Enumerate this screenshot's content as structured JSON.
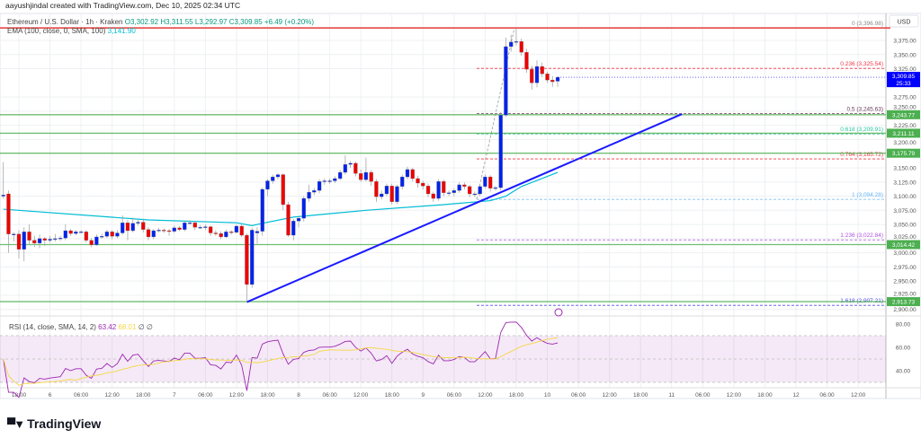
{
  "credit": "aayushjindal created with TradingView.com, Dec 10, 2025 02:34 UTC",
  "symbol": {
    "title": "Ethereum / U.S. Dollar · 1h · Kraken",
    "o": "O3,302.92",
    "h": "H3,311.55",
    "l": "L3,292.97",
    "c": "C3,309.85",
    "change": "+6.49 (+0.20%)"
  },
  "ema": {
    "label": "EMA (100, close, 0, SMA, 100)",
    "value": "3,141.90",
    "color": "#00bcd4"
  },
  "rsi": {
    "label": "RSI (14, close, SMA, 14, 2)",
    "value": "63.42",
    "sma": "68.01",
    "extra": "∅ ∅",
    "color": "#9c27b0",
    "sma_color": "#f5d742"
  },
  "currency": "USD",
  "last_price": {
    "value": "3,309.85",
    "countdown": "25:33",
    "color": "#0000ff"
  },
  "colors": {
    "up": "#0022ee",
    "down": "#ee0000",
    "support": "#4caf50",
    "trendline": "#1a1aff"
  },
  "logo": "TradingView",
  "chart_data": {
    "type": "candlestick",
    "interval": "1h",
    "start": "2025-12-05 15:00",
    "ohlc": [
      [
        3100,
        3160,
        3096,
        3102
      ],
      [
        3104,
        3110,
        3000,
        3033
      ],
      [
        3033,
        3036,
        3020,
        3033
      ],
      [
        3033,
        3040,
        2990,
        3006
      ],
      [
        3006,
        3045,
        2985,
        3037
      ],
      [
        3037,
        3050,
        3015,
        3022
      ],
      [
        3022,
        3030,
        3010,
        3017
      ],
      [
        3017,
        3032,
        3008,
        3025
      ],
      [
        3025,
        3028,
        3012,
        3022
      ],
      [
        3022,
        3030,
        3018,
        3024
      ],
      [
        3024,
        3033,
        3020,
        3025
      ],
      [
        3025,
        3030,
        3021,
        3026
      ],
      [
        3026,
        3050,
        3022,
        3039
      ],
      [
        3039,
        3042,
        3030,
        3034
      ],
      [
        3034,
        3040,
        3031,
        3037
      ],
      [
        3037,
        3040,
        3034,
        3037
      ],
      [
        3037,
        3040,
        3018,
        3022
      ],
      [
        3022,
        3026,
        3010,
        3014
      ],
      [
        3014,
        3032,
        3012,
        3028
      ],
      [
        3028,
        3034,
        3025,
        3029
      ],
      [
        3029,
        3041,
        3026,
        3037
      ],
      [
        3037,
        3040,
        3024,
        3029
      ],
      [
        3029,
        3040,
        3026,
        3035
      ],
      [
        3035,
        3066,
        3032,
        3053
      ],
      [
        3053,
        3058,
        3022,
        3039
      ],
      [
        3039,
        3062,
        3036,
        3052
      ],
      [
        3052,
        3058,
        3048,
        3054
      ],
      [
        3054,
        3060,
        3036,
        3041
      ],
      [
        3041,
        3045,
        3022,
        3028
      ],
      [
        3028,
        3042,
        3024,
        3039
      ],
      [
        3039,
        3044,
        3036,
        3040
      ],
      [
        3040,
        3043,
        3035,
        3039
      ],
      [
        3039,
        3042,
        3030,
        3038
      ],
      [
        3038,
        3048,
        3035,
        3044
      ],
      [
        3044,
        3047,
        3038,
        3041
      ],
      [
        3041,
        3056,
        3038,
        3053
      ],
      [
        3053,
        3057,
        3050,
        3053
      ],
      [
        3053,
        3055,
        3040,
        3045
      ],
      [
        3045,
        3049,
        3042,
        3045
      ],
      [
        3045,
        3050,
        3040,
        3046
      ],
      [
        3046,
        3048,
        3030,
        3035
      ],
      [
        3035,
        3040,
        3030,
        3034
      ],
      [
        3034,
        3038,
        3024,
        3028
      ],
      [
        3028,
        3041,
        3026,
        3037
      ],
      [
        3037,
        3040,
        3032,
        3036
      ],
      [
        3036,
        3050,
        3034,
        3047
      ],
      [
        3047,
        3050,
        3028,
        3031
      ],
      [
        3031,
        3034,
        2913,
        2944
      ],
      [
        2944,
        3044,
        2938,
        3040
      ],
      [
        3035,
        3045,
        3016,
        3038
      ],
      [
        3038,
        3115,
        3030,
        3112
      ],
      [
        3112,
        3130,
        3100,
        3127
      ],
      [
        3127,
        3138,
        3122,
        3134
      ],
      [
        3134,
        3140,
        3130,
        3138
      ],
      [
        3138,
        3140,
        3075,
        3085
      ],
      [
        3085,
        3090,
        3028,
        3031
      ],
      [
        3031,
        3060,
        3022,
        3056
      ],
      [
        3056,
        3064,
        3045,
        3061
      ],
      [
        3061,
        3100,
        3055,
        3096
      ],
      [
        3096,
        3120,
        3090,
        3107
      ],
      [
        3107,
        3114,
        3102,
        3110
      ],
      [
        3110,
        3130,
        3105,
        3126
      ],
      [
        3126,
        3131,
        3120,
        3127
      ],
      [
        3127,
        3131,
        3122,
        3127
      ],
      [
        3127,
        3135,
        3123,
        3131
      ],
      [
        3131,
        3146,
        3128,
        3142
      ],
      [
        3142,
        3172,
        3138,
        3156
      ],
      [
        3156,
        3162,
        3150,
        3158
      ],
      [
        3158,
        3161,
        3135,
        3140
      ],
      [
        3140,
        3147,
        3125,
        3129
      ],
      [
        3129,
        3168,
        3126,
        3142
      ],
      [
        3142,
        3146,
        3118,
        3126
      ],
      [
        3126,
        3130,
        3090,
        3099
      ],
      [
        3099,
        3110,
        3094,
        3104
      ],
      [
        3104,
        3122,
        3100,
        3118
      ],
      [
        3118,
        3122,
        3085,
        3090
      ],
      [
        3090,
        3120,
        3086,
        3117
      ],
      [
        3117,
        3138,
        3112,
        3134
      ],
      [
        3134,
        3152,
        3130,
        3147
      ],
      [
        3147,
        3150,
        3126,
        3131
      ],
      [
        3131,
        3136,
        3115,
        3123
      ],
      [
        3123,
        3127,
        3112,
        3118
      ],
      [
        3118,
        3122,
        3098,
        3104
      ],
      [
        3104,
        3108,
        3090,
        3096
      ],
      [
        3096,
        3130,
        3092,
        3126
      ],
      [
        3126,
        3129,
        3100,
        3106
      ],
      [
        3106,
        3110,
        3100,
        3106
      ],
      [
        3106,
        3114,
        3100,
        3110
      ],
      [
        3110,
        3124,
        3106,
        3120
      ],
      [
        3120,
        3124,
        3112,
        3117
      ],
      [
        3117,
        3120,
        3098,
        3104
      ],
      [
        3104,
        3108,
        3098,
        3104
      ],
      [
        3104,
        3120,
        3100,
        3117
      ],
      [
        3117,
        3138,
        3114,
        3134
      ],
      [
        3134,
        3137,
        3108,
        3114
      ],
      [
        3114,
        3118,
        3110,
        3115
      ],
      [
        3115,
        3248,
        3110,
        3243
      ],
      [
        3243,
        3380,
        3240,
        3364
      ],
      [
        3364,
        3385,
        3355,
        3372
      ],
      [
        3372,
        3397,
        3366,
        3373
      ],
      [
        3373,
        3378,
        3348,
        3354
      ],
      [
        3354,
        3360,
        3318,
        3324
      ],
      [
        3324,
        3330,
        3288,
        3300
      ],
      [
        3300,
        3340,
        3292,
        3329
      ],
      [
        3329,
        3336,
        3310,
        3316
      ],
      [
        3316,
        3320,
        3300,
        3305
      ],
      [
        3305,
        3312,
        3293,
        3302
      ],
      [
        3302.92,
        3311.55,
        3292.97,
        3309.85
      ]
    ],
    "ema100": [
      [
        0,
        3077
      ],
      [
        28,
        3058
      ],
      [
        45,
        3053
      ],
      [
        48,
        3048
      ],
      [
        50,
        3052
      ],
      [
        56,
        3063
      ],
      [
        70,
        3075
      ],
      [
        85,
        3085
      ],
      [
        94,
        3092
      ],
      [
        97,
        3100
      ],
      [
        100,
        3117
      ],
      [
        107,
        3141.9
      ]
    ],
    "y_ticks": [
      "3,375.00",
      "3,350.00",
      "3,325.00",
      "3,275.00",
      "3,250.00",
      "3,225.00",
      "3,200.00",
      "3,150.00",
      "3,125.00",
      "3,100.00",
      "3,075.00",
      "3,050.00",
      "3,025.00",
      "3,000.00",
      "2,975.00",
      "2,950.00",
      "2,925.00",
      "2,900.00"
    ],
    "y_range": [
      2885,
      3405
    ],
    "support_lines": [
      {
        "price": 3243.77,
        "label": "3,243.77"
      },
      {
        "price": 3211.11,
        "label": "3,211.11"
      },
      {
        "price": 3175.79,
        "label": "3,175.79"
      },
      {
        "price": 3014.42,
        "label": "3,014.42"
      },
      {
        "price": 2913.73,
        "label": "2,913.73"
      }
    ],
    "fib_levels": [
      {
        "price": 3396.98,
        "label": "0 (3,396.98)",
        "color": "#888888"
      },
      {
        "price": 3325.54,
        "label": "0.236 (3,325.54)",
        "color": "#f23645"
      },
      {
        "price": 3245.63,
        "label": "0.5 (3,245.63)",
        "color": "#6b3a5a"
      },
      {
        "price": 3209.91,
        "label": "0.618 (3,209.91)",
        "color": "#26c6a0"
      },
      {
        "price": 3165.72,
        "label": "0.764 (3,165.72)",
        "color": "#f23645"
      },
      {
        "price": 3094.28,
        "label": "1 (3,094.28)",
        "color": "#64b5f6"
      },
      {
        "price": 3022.84,
        "label": "1.236 (3,022.84)",
        "color": "#b052e0"
      },
      {
        "price": 2907.21,
        "label": "1.618 (2,907.21)",
        "color": "#5050e0"
      }
    ],
    "top_line": {
      "price": 3396.98,
      "color": "#e53935"
    },
    "trendline": {
      "from": [
        "2025-12-07 14:00",
        2913
      ],
      "to": [
        "2025-12-11 02:00",
        3245
      ]
    },
    "rsi_ticks": [
      "80.00",
      "60.00",
      "40.00"
    ],
    "rsi_bands": [
      70,
      50,
      30
    ],
    "x_ticks": [
      "18:00",
      "6",
      "06:00",
      "12:00",
      "18:00",
      "7",
      "06:00",
      "12:00",
      "18:00",
      "8",
      "06:00",
      "12:00",
      "18:00",
      "9",
      "06:00",
      "12:00",
      "18:00",
      "10",
      "06:00",
      "12:00",
      "18:00",
      "11",
      "06:00",
      "12:00",
      "18:00",
      "12",
      "06:00",
      "12:00"
    ]
  }
}
